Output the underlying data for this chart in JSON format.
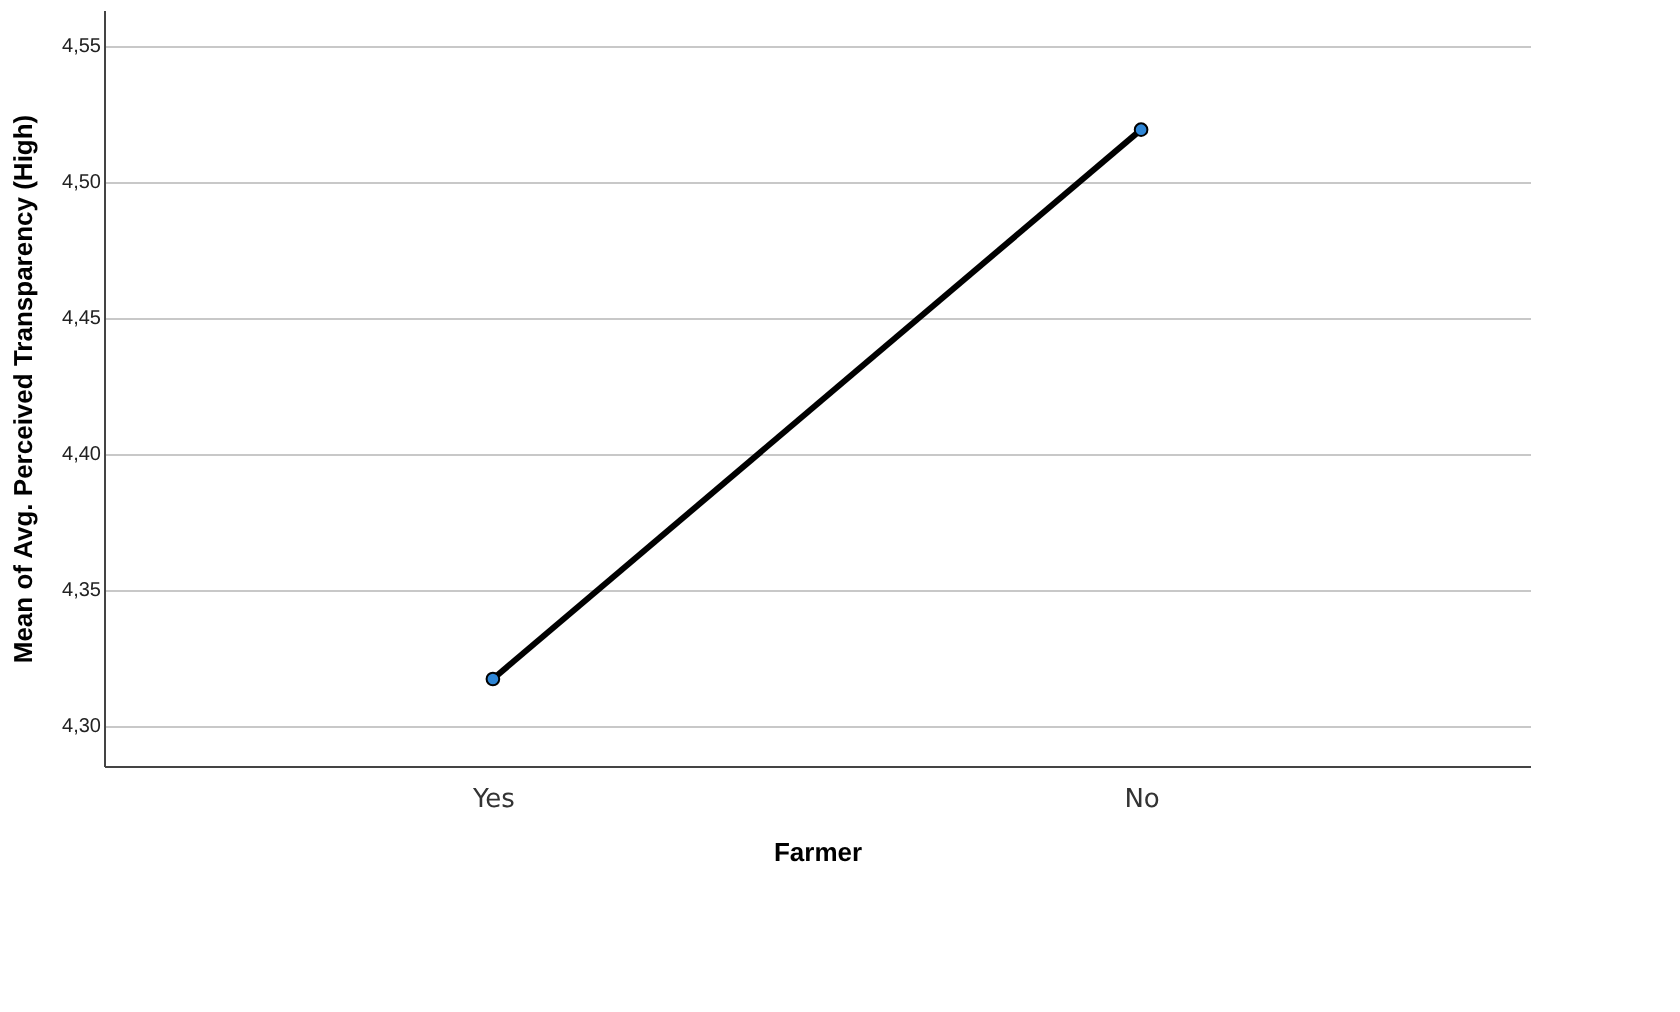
{
  "chart_data": {
    "type": "line",
    "xlabel": "Farmer",
    "ylabel": "Mean of Avg. Perceived Transparency (High)",
    "categories": [
      "Yes",
      "No"
    ],
    "series": [
      {
        "color": "#000000",
        "colors": [
          "#2f86d6",
          "#2f86d6"
        ],
        "values": [
          4.317,
          4.519
        ]
      }
    ],
    "ylim": [
      4.285,
      4.563
    ],
    "yticks": [
      {
        "value": 4.3,
        "label": "4,30"
      },
      {
        "value": 4.35,
        "label": "4,35"
      },
      {
        "value": 4.4,
        "label": "4,40"
      },
      {
        "value": 4.45,
        "label": "4,45"
      },
      {
        "value": 4.5,
        "label": "4,50"
      },
      {
        "value": 4.55,
        "label": "4,55"
      }
    ],
    "grid": "y",
    "marker": "circle",
    "line_style": "solid"
  }
}
